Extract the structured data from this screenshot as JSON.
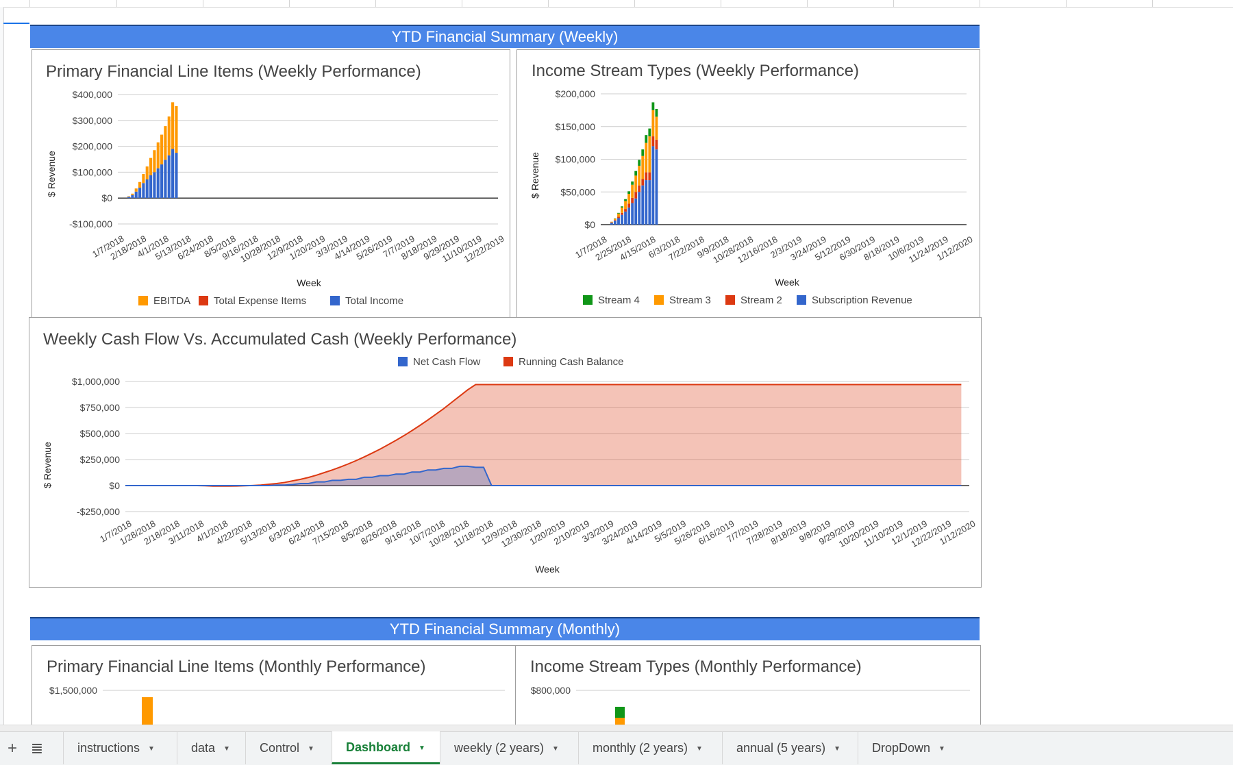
{
  "sections": {
    "weekly_title": "YTD Financial Summary (Weekly)",
    "monthly_title": "YTD Financial Summary (Monthly)"
  },
  "colors": {
    "banner": "#4a86e8",
    "blue": "#3366cc",
    "red": "#dc3912",
    "orange": "#ff9900",
    "green": "#109618",
    "active_tab": "#188038"
  },
  "tabbar": {
    "add_icon": "+",
    "menu_icon": "≣",
    "caret": "▼",
    "tabs": [
      {
        "label": "instructions"
      },
      {
        "label": "data"
      },
      {
        "label": "Control"
      },
      {
        "label": "Dashboard",
        "active": true
      },
      {
        "label": "weekly (2 years)"
      },
      {
        "label": "monthly (2 years)"
      },
      {
        "label": "annual (5 years)"
      },
      {
        "label": "DropDown"
      }
    ]
  },
  "chart_data": [
    {
      "id": "primary_weekly",
      "type": "bar",
      "stacked": true,
      "title": "Primary Financial Line Items (Weekly Performance)",
      "xlabel": "Week",
      "ylabel": "$ Revenue",
      "ylim": [
        -100000,
        400000
      ],
      "yticks": [
        -100000,
        0,
        100000,
        200000,
        300000,
        400000
      ],
      "ytick_labels": [
        "-$100,000",
        "$0",
        "$100,000",
        "$200,000",
        "$300,000",
        "$400,000"
      ],
      "xtick_labels": [
        "1/7/2018",
        "2/18/2018",
        "4/1/2018",
        "5/13/2018",
        "6/24/2018",
        "8/5/2018",
        "9/16/2018",
        "10/28/2018",
        "12/9/2018",
        "1/20/2019",
        "3/3/2019",
        "4/14/2019",
        "5/26/2019",
        "7/7/2019",
        "8/18/2019",
        "9/29/2019",
        "11/10/2019",
        "12/22/2019"
      ],
      "n_weeks": 104,
      "legend": "bottom",
      "legend_order": [
        0,
        1,
        2
      ],
      "series": [
        {
          "name": "EBITDA",
          "color": "#ff9900",
          "values": [
            2000,
            5000,
            12000,
            22000,
            35000,
            50000,
            67000,
            85000,
            100000,
            115000,
            130000,
            150000,
            180000,
            180000
          ]
        },
        {
          "name": "Total Expense Items",
          "color": "#dc3912",
          "values": [
            0,
            0,
            0,
            0,
            0,
            0,
            0,
            0,
            0,
            0,
            0,
            0,
            0,
            0
          ]
        },
        {
          "name": "Total Income",
          "color": "#3366cc",
          "values": [
            5000,
            12000,
            25000,
            40000,
            58000,
            72000,
            88000,
            100000,
            115000,
            130000,
            148000,
            165000,
            190000,
            175000
          ]
        }
      ],
      "stack_order": [
        2,
        1,
        0
      ]
    },
    {
      "id": "income_weekly",
      "type": "bar",
      "stacked": true,
      "title": "Income Stream Types (Weekly Performance)",
      "xlabel": "Week",
      "ylabel": "$ Revenue",
      "ylim": [
        0,
        200000
      ],
      "yticks": [
        0,
        50000,
        100000,
        150000,
        200000
      ],
      "ytick_labels": [
        "$0",
        "$50,000",
        "$100,000",
        "$150,000",
        "$200,000"
      ],
      "xtick_labels": [
        "1/7/2018",
        "2/25/2018",
        "4/15/2018",
        "6/3/2018",
        "7/22/2018",
        "9/9/2018",
        "10/28/2018",
        "12/16/2018",
        "2/3/2019",
        "3/24/2019",
        "5/12/2019",
        "6/30/2019",
        "8/18/2019",
        "10/6/2019",
        "11/24/2019",
        "1/12/2020"
      ],
      "n_weeks": 106,
      "legend": "bottom",
      "legend_order": [
        0,
        1,
        2,
        3
      ],
      "series": [
        {
          "name": "Stream 4",
          "color": "#109618",
          "values": [
            0,
            500,
            1000,
            2000,
            3000,
            4000,
            5000,
            7000,
            9000,
            10000,
            12000,
            12000,
            12000,
            12000
          ]
        },
        {
          "name": "Stream 3",
          "color": "#ff9900",
          "values": [
            1000,
            2000,
            5000,
            8000,
            12000,
            15000,
            20000,
            25000,
            30000,
            35000,
            45000,
            55000,
            40000,
            35000
          ]
        },
        {
          "name": "Stream 2",
          "color": "#dc3912",
          "values": [
            500,
            1000,
            2000,
            3000,
            4000,
            6000,
            8000,
            10000,
            10000,
            10000,
            12000,
            12000,
            15000,
            15000
          ]
        },
        {
          "name": "Subscription Revenue",
          "color": "#3366cc",
          "values": [
            3000,
            6000,
            10000,
            15000,
            20000,
            26000,
            33000,
            40000,
            50000,
            60000,
            68000,
            68000,
            120000,
            115000
          ]
        }
      ],
      "stack_order": [
        3,
        2,
        1,
        0
      ]
    },
    {
      "id": "cash_weekly",
      "type": "area",
      "title": "Weekly Cash Flow Vs. Accumulated Cash (Weekly Performance)",
      "xlabel": "Week",
      "ylabel": "$ Revenue",
      "ylim": [
        -250000,
        1000000
      ],
      "yticks": [
        -250000,
        0,
        250000,
        500000,
        750000,
        1000000
      ],
      "ytick_labels": [
        "-$250,000",
        "$0",
        "$250,000",
        "$500,000",
        "$750,000",
        "$1,000,000"
      ],
      "xtick_labels": [
        "1/7/2018",
        "1/28/2018",
        "2/18/2018",
        "3/11/2018",
        "4/1/2018",
        "4/22/2018",
        "5/13/2018",
        "6/3/2018",
        "6/24/2018",
        "7/15/2018",
        "8/5/2018",
        "8/26/2018",
        "9/16/2018",
        "10/7/2018",
        "10/28/2018",
        "11/18/2018",
        "12/9/2018",
        "12/30/2018",
        "1/20/2019",
        "2/10/2019",
        "3/3/2019",
        "3/24/2019",
        "4/14/2019",
        "5/5/2019",
        "5/26/2019",
        "6/16/2019",
        "7/7/2019",
        "7/28/2019",
        "8/18/2019",
        "9/8/2019",
        "9/29/2019",
        "10/20/2019",
        "11/10/2019",
        "12/1/2019",
        "12/22/2019",
        "1/12/2020"
      ],
      "n_weeks": 106,
      "legend": "top",
      "series": [
        {
          "name": "Net Cash Flow",
          "color": "#3366cc",
          "values": [
            0,
            0,
            0,
            0,
            0,
            0,
            0,
            0,
            0,
            0,
            0,
            0,
            0,
            0,
            0,
            0,
            0,
            0,
            0,
            5000,
            5000,
            10000,
            20000,
            20000,
            35000,
            35000,
            50000,
            50000,
            60000,
            60000,
            80000,
            80000,
            95000,
            95000,
            110000,
            110000,
            130000,
            130000,
            150000,
            150000,
            165000,
            165000,
            185000,
            185000,
            175000,
            175000
          ]
        },
        {
          "name": "Running Cash Balance",
          "color": "#dc3912",
          "values": [
            0,
            0,
            0,
            0,
            0,
            0,
            0,
            0,
            0,
            0,
            -2000,
            -5000,
            -5000,
            -5000,
            -4000,
            -2000,
            1000,
            5000,
            12000,
            20000,
            30000,
            45000,
            60000,
            78000,
            100000,
            125000,
            150000,
            178000,
            208000,
            240000,
            275000,
            312000,
            350000,
            392000,
            435000,
            480000,
            528000,
            578000,
            630000,
            685000,
            740000,
            800000,
            860000,
            920000,
            970000,
            970000
          ]
        }
      ]
    },
    {
      "id": "primary_monthly",
      "type": "bar",
      "stacked": true,
      "title": "Primary Financial Line Items (Monthly Performance)",
      "yticks": [
        1500000
      ],
      "ytick_labels": [
        "$1,500,000"
      ],
      "ylim": [
        0,
        1500000
      ]
    },
    {
      "id": "income_monthly",
      "type": "bar",
      "stacked": true,
      "title": "Income Stream Types (Monthly Performance)",
      "yticks": [
        800000
      ],
      "ytick_labels": [
        "$800,000"
      ],
      "ylim": [
        0,
        800000
      ]
    }
  ]
}
